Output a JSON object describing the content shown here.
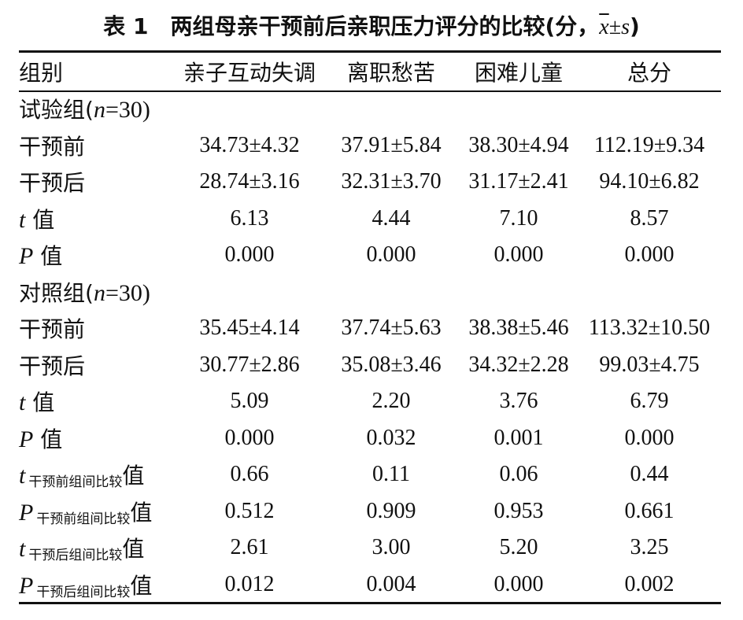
{
  "title": {
    "table_num": "表 1",
    "text": "两组母亲干预前后亲职压力评分的比较(分，",
    "xbar": "x",
    "pm": "±",
    "s": "s",
    "close": ")"
  },
  "header": [
    "组别",
    "亲子互动失调",
    "离职愁苦",
    "困难儿童",
    "总分"
  ],
  "groups": {
    "test": {
      "name": "试验组(",
      "n_var": "n",
      "n_val": "=30)"
    },
    "control": {
      "name": "对照组(",
      "n_var": "n",
      "n_val": "=30)"
    }
  },
  "labels": {
    "before": "干预前",
    "after": "干预后",
    "t_sym": "t",
    "p_sym": "P",
    "value_word": "值",
    "sub_before": "干预前组间比较",
    "sub_after": "干预后组间比较"
  },
  "rows": {
    "test_before": [
      "34.73±4.32",
      "37.91±5.84",
      "38.30±4.94",
      "112.19±9.34"
    ],
    "test_after": [
      "28.74±3.16",
      "32.31±3.70",
      "31.17±2.41",
      "94.10±6.82"
    ],
    "test_t": [
      "6.13",
      "4.44",
      "7.10",
      "8.57"
    ],
    "test_p": [
      "0.000",
      "0.000",
      "0.000",
      "0.000"
    ],
    "control_before": [
      "35.45±4.14",
      "37.74±5.63",
      "38.38±5.46",
      "113.32±10.50"
    ],
    "control_after": [
      "30.77±2.86",
      "35.08±3.46",
      "34.32±2.28",
      "99.03±4.75"
    ],
    "control_t": [
      "5.09",
      "2.20",
      "3.76",
      "6.79"
    ],
    "control_p": [
      "0.000",
      "0.032",
      "0.001",
      "0.000"
    ],
    "t_before_between": [
      "0.66",
      "0.11",
      "0.06",
      "0.44"
    ],
    "p_before_between": [
      "0.512",
      "0.909",
      "0.953",
      "0.661"
    ],
    "t_after_between": [
      "2.61",
      "3.00",
      "5.20",
      "3.25"
    ],
    "p_after_between": [
      "0.012",
      "0.004",
      "0.000",
      "0.002"
    ]
  }
}
